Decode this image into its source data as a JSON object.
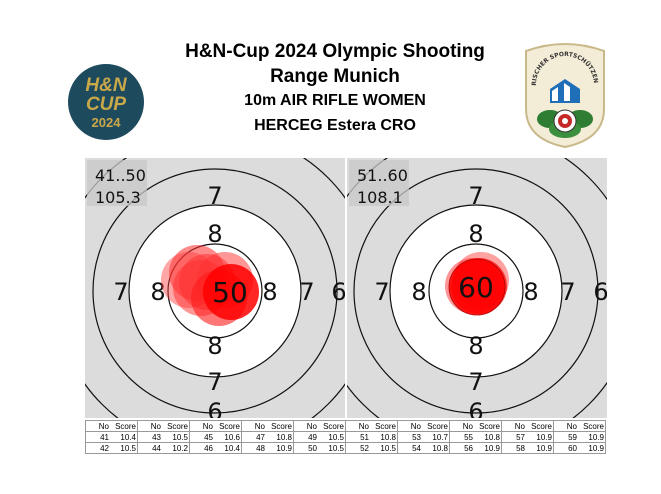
{
  "header": {
    "line1": "H&N-Cup 2024 Olympic Shooting",
    "line2": "Range Munich",
    "event": "10m AIR RIFLE WOMEN",
    "athlete": "HERCEG Estera CRO"
  },
  "logos": {
    "left": {
      "line1": "H&N",
      "line2": "CUP",
      "line3": "2024",
      "bg": "#1e4a5e",
      "accent": "#c9a84a"
    },
    "right": {
      "ring_text": "BAYERISCHER SPORTSCHÜTZENBUND",
      "accent": "#1e6fb8",
      "leaf": "#2e7d32"
    }
  },
  "targets": [
    {
      "range": "41..50",
      "total": "105.3",
      "center_score": "50",
      "ring_numbers": [
        "7",
        "8"
      ]
    },
    {
      "range": "51..60",
      "total": "108.1",
      "center_score": "60",
      "ring_numbers": [
        "7",
        "8"
      ]
    }
  ],
  "table": {
    "headers": [
      "No",
      "Score"
    ],
    "rows": [
      [
        {
          "no": "41",
          "score": "10.4"
        },
        {
          "no": "43",
          "score": "10.5"
        },
        {
          "no": "45",
          "score": "10.6"
        },
        {
          "no": "47",
          "score": "10.8"
        },
        {
          "no": "49",
          "score": "10.5"
        },
        {
          "no": "51",
          "score": "10.8"
        },
        {
          "no": "53",
          "score": "10.7"
        },
        {
          "no": "55",
          "score": "10.8"
        },
        {
          "no": "57",
          "score": "10.9"
        },
        {
          "no": "59",
          "score": "10.9"
        }
      ],
      [
        {
          "no": "42",
          "score": "10.5"
        },
        {
          "no": "44",
          "score": "10.2"
        },
        {
          "no": "46",
          "score": "10.4"
        },
        {
          "no": "48",
          "score": "10.9"
        },
        {
          "no": "50",
          "score": "10.5"
        },
        {
          "no": "52",
          "score": "10.5"
        },
        {
          "no": "54",
          "score": "10.8"
        },
        {
          "no": "56",
          "score": "10.9"
        },
        {
          "no": "58",
          "score": "10.9"
        },
        {
          "no": "60",
          "score": "10.9"
        }
      ]
    ]
  },
  "colors": {
    "shot": "#ff2a2a",
    "target_bg": "#dcdcdc",
    "ring": "#111111"
  }
}
